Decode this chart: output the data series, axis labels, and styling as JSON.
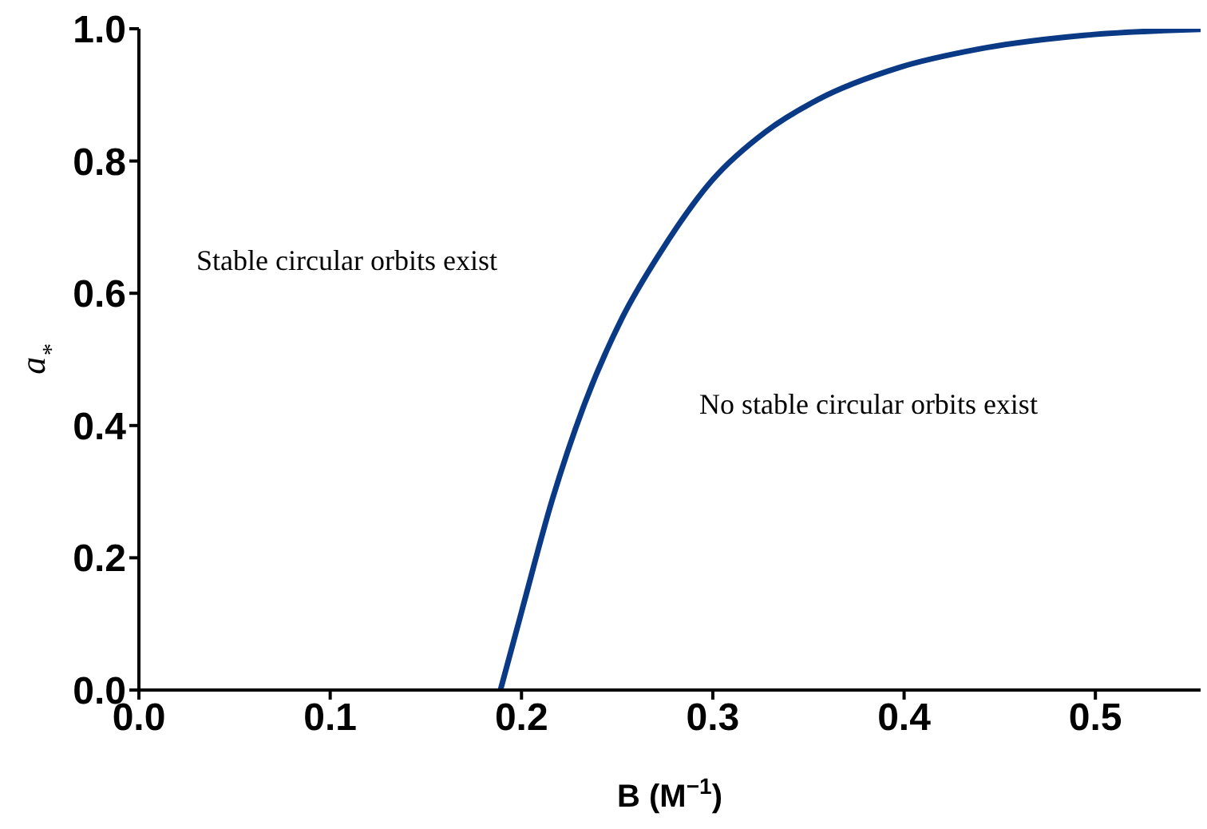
{
  "chart_data": {
    "type": "line",
    "xlabel": "B (M$^{−1}$)",
    "ylabel": "a$_{*}$",
    "annotations": [
      "Stable circular orbits exist",
      "No stable circular orbits exist"
    ],
    "x": [
      0.189,
      0.2,
      0.216,
      0.233,
      0.2525,
      0.272,
      0.3,
      0.3275,
      0.355,
      0.397,
      0.4385,
      0.494,
      0.555
    ],
    "series": [
      {
        "color": "#0a3a86",
        "values": [
          0,
          0.118,
          0.287,
          0.433,
          0.562,
          0.659,
          0.772,
          0.844,
          0.893,
          0.941,
          0.969,
          0.99,
          0.999
        ]
      }
    ],
    "xlim": [
      0,
      0.555
    ],
    "xticks": [
      {
        "value": 0,
        "label": "0.0"
      },
      0.1,
      0.2,
      0.3,
      0.4,
      0.5
    ],
    "ylim": [
      0,
      1
    ],
    "yticks": [
      {
        "value": 0,
        "label": "0.0"
      },
      0.2,
      0.4,
      0.6,
      0.8,
      {
        "value": 1,
        "label": "1.0"
      }
    ],
    "marker": "none",
    "line_style": "solid"
  }
}
